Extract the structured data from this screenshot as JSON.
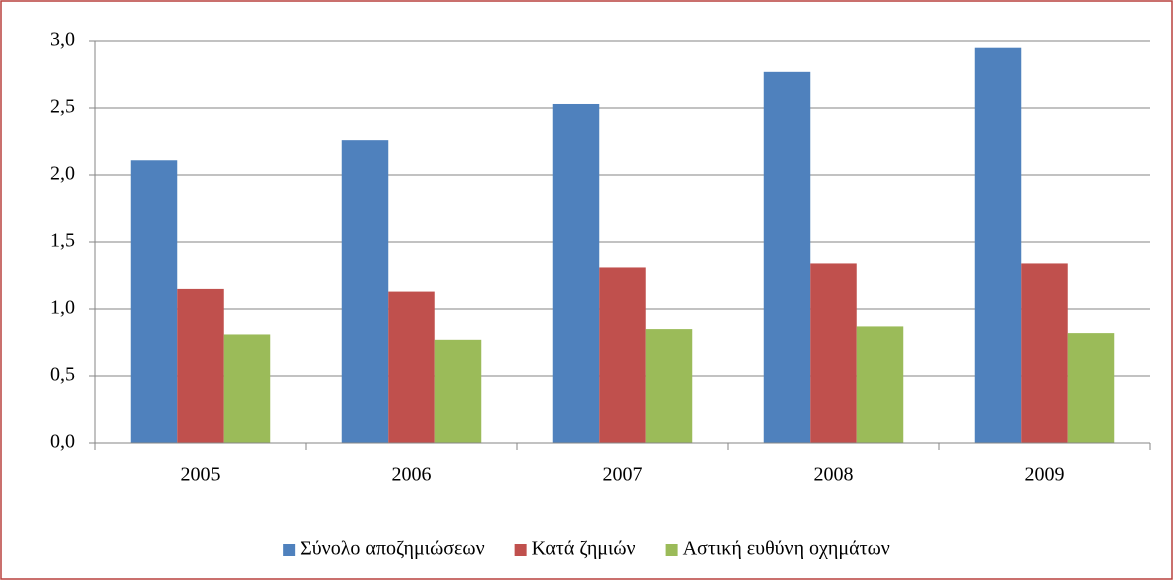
{
  "chart_data": {
    "type": "bar",
    "categories": [
      "2005",
      "2006",
      "2007",
      "2008",
      "2009"
    ],
    "series": [
      {
        "name": "Σύνολο αποζημιώσεων",
        "color": "#4f81bd",
        "values": [
          2.11,
          2.26,
          2.53,
          2.77,
          2.95
        ]
      },
      {
        "name": "Κατά ζημιών",
        "color": "#c0504d",
        "values": [
          1.15,
          1.13,
          1.31,
          1.34,
          1.34
        ]
      },
      {
        "name": "Αστική ευθύνη οχημάτων",
        "color": "#9bbb59",
        "values": [
          0.81,
          0.77,
          0.85,
          0.87,
          0.82
        ]
      }
    ],
    "ylim": [
      0,
      3.0
    ],
    "yticks": [
      {
        "value": 0,
        "label": "0,0"
      },
      {
        "value": 0.5,
        "label": "0,5"
      },
      {
        "value": 1.0,
        "label": "1,0"
      },
      {
        "value": 1.5,
        "label": "1,5"
      },
      {
        "value": 2.0,
        "label": "2,0"
      },
      {
        "value": 2.5,
        "label": "2,5"
      },
      {
        "value": 3.0,
        "label": "3,0"
      }
    ],
    "grid": true,
    "legend": "bottom"
  }
}
